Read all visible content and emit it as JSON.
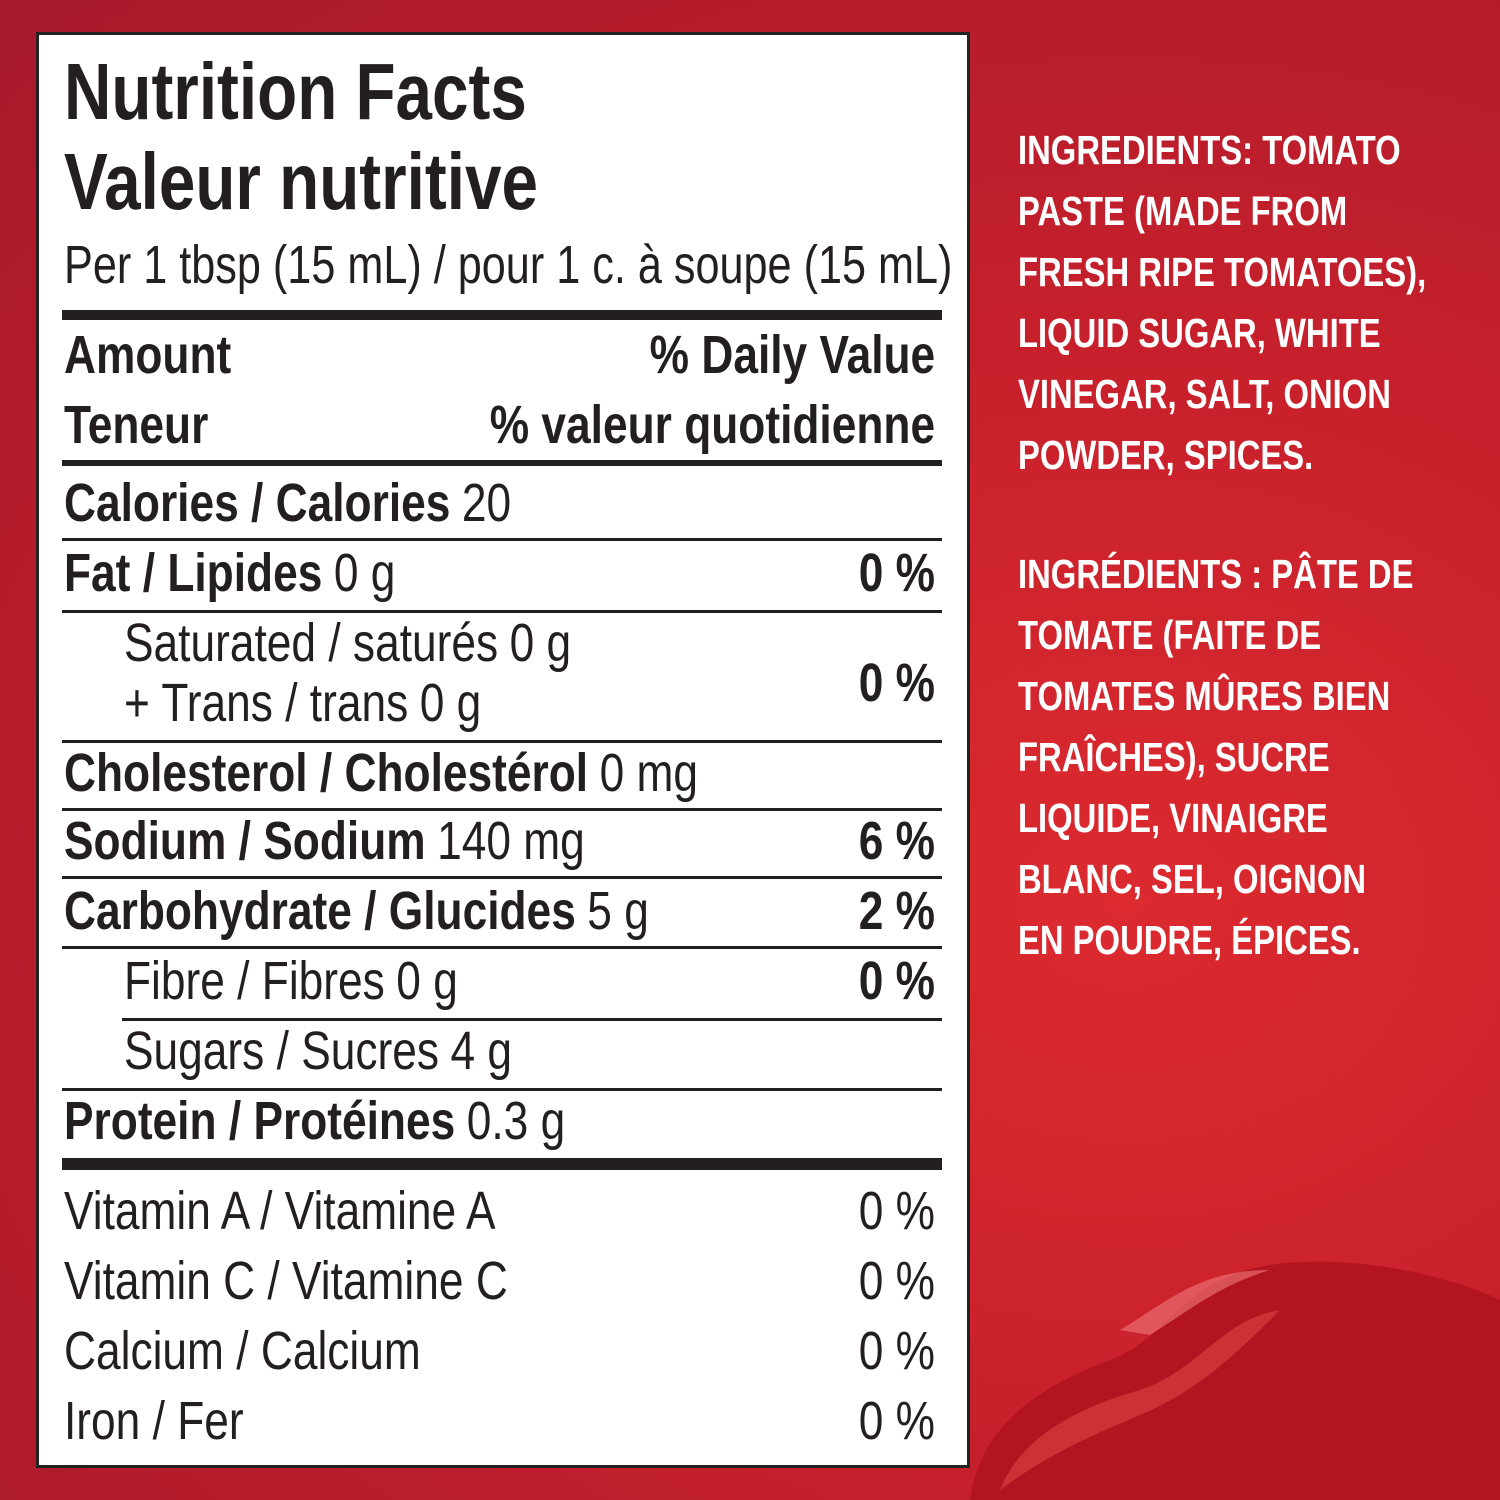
{
  "label": {
    "title_en": "Nutrition Facts",
    "title_fr": "Valeur nutritive",
    "serving": "Per 1 tbsp (15 mL) / pour 1 c. à soupe (15 mL)",
    "header": {
      "amount": "Amount",
      "amount_fr": "Teneur",
      "dv": "% Daily Value",
      "dv_fr": "% valeur quotidienne"
    },
    "nutrients": [
      {
        "name": "Calories / Calories",
        "amount": "20"
      },
      {
        "name": "Fat / Lipides",
        "amount": "0 g",
        "dv": "0 %"
      },
      {
        "name": "Saturated / saturés",
        "amount": "0 g",
        "name2": "+ Trans / trans",
        "amount2": "0 g",
        "dv": "0 %"
      },
      {
        "name": "Cholesterol / Cholestérol",
        "amount": "0 mg"
      },
      {
        "name": "Sodium / Sodium",
        "amount": "140 mg",
        "dv": "6 %"
      },
      {
        "name": "Carbohydrate / Glucides",
        "amount": "5 g",
        "dv": "2 %"
      },
      {
        "name": "Fibre / Fibres",
        "amount": "0 g",
        "dv": "0 %"
      },
      {
        "name": "Sugars / Sucres",
        "amount": "4 g"
      },
      {
        "name": "Protein / Protéines",
        "amount": "0.3 g"
      }
    ],
    "vitamins": [
      {
        "name": "Vitamin A / Vitamine A",
        "dv": "0 %"
      },
      {
        "name": "Vitamin C / Vitamine C",
        "dv": "0 %"
      },
      {
        "name": "Calcium / Calcium",
        "dv": "0 %"
      },
      {
        "name": "Iron / Fer",
        "dv": "0 %"
      }
    ]
  },
  "ingredients": {
    "en": [
      "INGREDIENTS: TOMATO",
      "PASTE (MADE FROM",
      "FRESH RIPE TOMATOES),",
      "LIQUID SUGAR, WHITE",
      "VINEGAR, SALT, ONION",
      "POWDER, SPICES."
    ],
    "fr": [
      "INGRÉDIENTS : PÂTE DE",
      "TOMATE (FAITE DE",
      "TOMATES MÛRES BIEN",
      "FRAÎCHES), SUCRE",
      "LIQUIDE, VINAIGRE",
      "BLANC, SEL, OIGNON",
      "EN POUDRE, ÉPICES."
    ]
  }
}
